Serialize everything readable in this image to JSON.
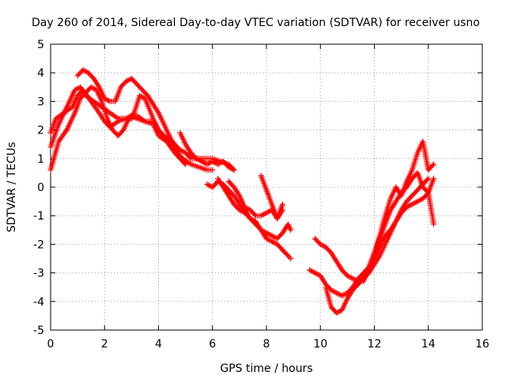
{
  "chart_data": {
    "type": "scatter",
    "title": "Day 260 of 2014, Sidereal Day-to-day VTEC variation (SDTVAR) for receiver usno",
    "xlabel": "GPS time / hours",
    "ylabel": "SDTVAR / TECUs",
    "xlim": [
      0,
      16
    ],
    "ylim": [
      -5,
      5
    ],
    "grid": true,
    "marker": "+",
    "color": "#ff0000",
    "xticks": [
      "0",
      "2",
      "4",
      "6",
      "8",
      "10",
      "12",
      "14",
      "16"
    ],
    "yticks": [
      "-5",
      "-4",
      "-3",
      "-2",
      "-1",
      "0",
      "1",
      "2",
      "3",
      "4",
      "5"
    ],
    "series": [
      {
        "x": [
          0.0,
          0.2,
          0.5,
          0.8,
          1.0,
          1.2,
          1.5,
          1.8,
          2.0,
          2.2,
          2.5,
          2.8,
          3.0,
          3.2,
          3.5,
          3.8,
          4.0,
          4.2,
          4.5,
          4.8,
          5.0,
          5.2,
          5.5,
          5.8,
          6.0,
          6.3,
          6.6,
          6.8
        ],
        "y": [
          1.9,
          2.4,
          2.6,
          2.8,
          3.2,
          3.4,
          3.0,
          2.6,
          2.3,
          2.1,
          2.3,
          2.4,
          2.4,
          2.5,
          2.3,
          2.3,
          2.0,
          1.8,
          1.6,
          1.3,
          1.2,
          1.0,
          1.0,
          1.0,
          1.0,
          0.9,
          0.8,
          0.6
        ]
      },
      {
        "x": [
          0.0,
          0.3,
          0.6,
          0.9,
          1.1,
          1.3,
          1.6,
          1.9,
          2.2,
          2.5,
          2.8,
          3.0,
          3.2,
          3.5,
          3.8,
          4.0,
          4.3,
          4.6,
          4.9,
          5.2,
          5.5,
          5.8,
          6.0
        ],
        "y": [
          1.4,
          2.2,
          2.8,
          3.4,
          3.5,
          3.2,
          3.0,
          2.8,
          2.6,
          2.4,
          2.4,
          2.5,
          2.4,
          2.3,
          2.2,
          1.8,
          1.6,
          1.3,
          1.0,
          0.8,
          0.7,
          0.6,
          0.6
        ]
      },
      {
        "x": [
          0.0,
          0.3,
          0.6,
          0.9,
          1.1,
          1.3,
          1.5,
          1.7,
          1.9,
          2.1,
          2.3,
          2.5,
          2.7,
          2.9,
          3.1,
          3.3,
          3.5,
          3.8,
          4.0,
          4.3,
          4.6,
          4.8,
          5.0
        ],
        "y": [
          0.6,
          1.6,
          2.0,
          2.6,
          3.1,
          3.3,
          3.5,
          3.4,
          3.0,
          2.4,
          2.0,
          1.8,
          2.0,
          2.4,
          2.6,
          3.2,
          3.1,
          2.4,
          2.0,
          1.6,
          1.2,
          1.0,
          0.8
        ]
      },
      {
        "x": [
          1.0,
          1.2,
          1.4,
          1.6,
          1.8,
          2.0,
          2.2,
          2.4,
          2.6,
          2.8,
          3.0,
          3.2,
          3.4,
          3.6,
          3.8,
          4.0,
          4.2,
          4.4,
          4.6,
          4.8,
          5.0
        ],
        "y": [
          3.9,
          4.1,
          4.0,
          3.8,
          3.5,
          3.1,
          3.0,
          3.0,
          3.5,
          3.7,
          3.8,
          3.6,
          3.4,
          3.2,
          2.9,
          2.6,
          2.2,
          1.8,
          1.4,
          1.0,
          0.8
        ]
      },
      {
        "x": [
          4.8,
          5.0,
          5.2,
          5.4,
          5.6,
          5.8,
          6.0,
          6.2,
          6.4,
          6.6,
          6.8
        ],
        "y": [
          1.9,
          1.5,
          1.2,
          1.0,
          0.9,
          0.8,
          0.9,
          0.8,
          0.9,
          0.7,
          0.6
        ]
      },
      {
        "x": [
          5.8,
          6.0,
          6.2,
          6.4,
          6.6,
          6.8,
          7.0,
          7.2,
          7.4,
          7.6,
          7.8,
          8.0,
          8.2,
          8.4,
          8.6,
          8.8,
          8.9
        ],
        "y": [
          0.1,
          0.0,
          0.2,
          0.1,
          -0.1,
          -0.3,
          -0.6,
          -0.8,
          -1.1,
          -1.2,
          -1.5,
          -1.8,
          -1.9,
          -2.0,
          -2.2,
          -2.4,
          -2.5
        ]
      },
      {
        "x": [
          6.2,
          6.4,
          6.6,
          6.8,
          7.0,
          7.2,
          7.4,
          7.6,
          7.8,
          8.0,
          8.2,
          8.4,
          8.6,
          8.8,
          8.9
        ],
        "y": [
          0.3,
          0.0,
          -0.3,
          -0.6,
          -0.8,
          -0.9,
          -1.1,
          -1.3,
          -1.5,
          -1.6,
          -1.7,
          -1.8,
          -1.6,
          -1.3,
          -1.5
        ]
      },
      {
        "x": [
          6.6,
          6.8,
          7.0,
          7.2,
          7.4,
          7.6,
          7.8,
          8.0,
          8.2,
          8.4,
          8.6
        ],
        "y": [
          0.2,
          0.0,
          -0.3,
          -0.7,
          -0.8,
          -1.0,
          -1.0,
          -0.9,
          -0.8,
          -1.1,
          -0.6
        ]
      },
      {
        "x": [
          7.8,
          8.0,
          8.2,
          8.4,
          8.6
        ],
        "y": [
          0.4,
          -0.1,
          -0.6,
          -1.1,
          -0.8
        ]
      },
      {
        "x": [
          9.6,
          9.8,
          10.0,
          10.2,
          10.4,
          10.6,
          10.8,
          11.0,
          11.2,
          11.4,
          11.6,
          11.8,
          12.0,
          12.2,
          12.4,
          12.6,
          12.8,
          13.0,
          13.2,
          13.4,
          13.6,
          13.8,
          14.0,
          14.2
        ],
        "y": [
          -2.9,
          -3.0,
          -3.1,
          -3.4,
          -3.6,
          -3.7,
          -3.8,
          -3.7,
          -3.5,
          -3.2,
          -3.0,
          -2.8,
          -2.5,
          -2.1,
          -1.7,
          -1.5,
          -1.2,
          -0.9,
          -0.7,
          -0.6,
          -0.5,
          -0.4,
          -0.2,
          0.3
        ]
      },
      {
        "x": [
          9.8,
          10.0,
          10.2,
          10.4,
          10.6,
          10.8,
          11.0,
          11.2,
          11.4,
          11.6,
          11.8,
          12.0,
          12.2,
          12.4,
          12.6,
          12.8,
          13.0,
          13.2,
          13.4,
          13.6,
          13.8,
          14.0
        ],
        "y": [
          -1.8,
          -2.0,
          -2.1,
          -2.3,
          -2.6,
          -2.9,
          -3.1,
          -3.2,
          -3.3,
          -3.2,
          -3.0,
          -2.7,
          -2.4,
          -2.0,
          -1.6,
          -1.2,
          -0.8,
          -0.5,
          -0.3,
          -0.1,
          0.1,
          0.3
        ]
      },
      {
        "x": [
          10.2,
          10.4,
          10.6,
          10.8,
          11.0,
          11.2,
          11.4,
          11.6,
          11.8,
          12.0,
          12.2,
          12.4,
          12.6,
          12.8,
          13.0,
          13.2,
          13.4,
          13.6,
          13.8,
          14.0,
          14.2
        ],
        "y": [
          -3.5,
          -4.2,
          -4.4,
          -4.3,
          -3.9,
          -3.6,
          -3.4,
          -3.2,
          -2.8,
          -2.3,
          -1.7,
          -1.0,
          -0.4,
          0.0,
          -0.3,
          0.2,
          0.6,
          1.2,
          1.6,
          0.6,
          0.8
        ]
      },
      {
        "x": [
          11.6,
          11.8,
          12.0,
          12.2,
          12.4,
          12.6,
          12.8,
          13.0,
          13.2,
          13.4,
          13.6,
          13.8,
          14.0,
          14.2
        ],
        "y": [
          -3.3,
          -2.8,
          -2.3,
          -1.8,
          -1.3,
          -0.8,
          -0.5,
          -0.2,
          0.0,
          0.3,
          0.5,
          0.0,
          -0.2,
          -1.3
        ]
      }
    ]
  }
}
